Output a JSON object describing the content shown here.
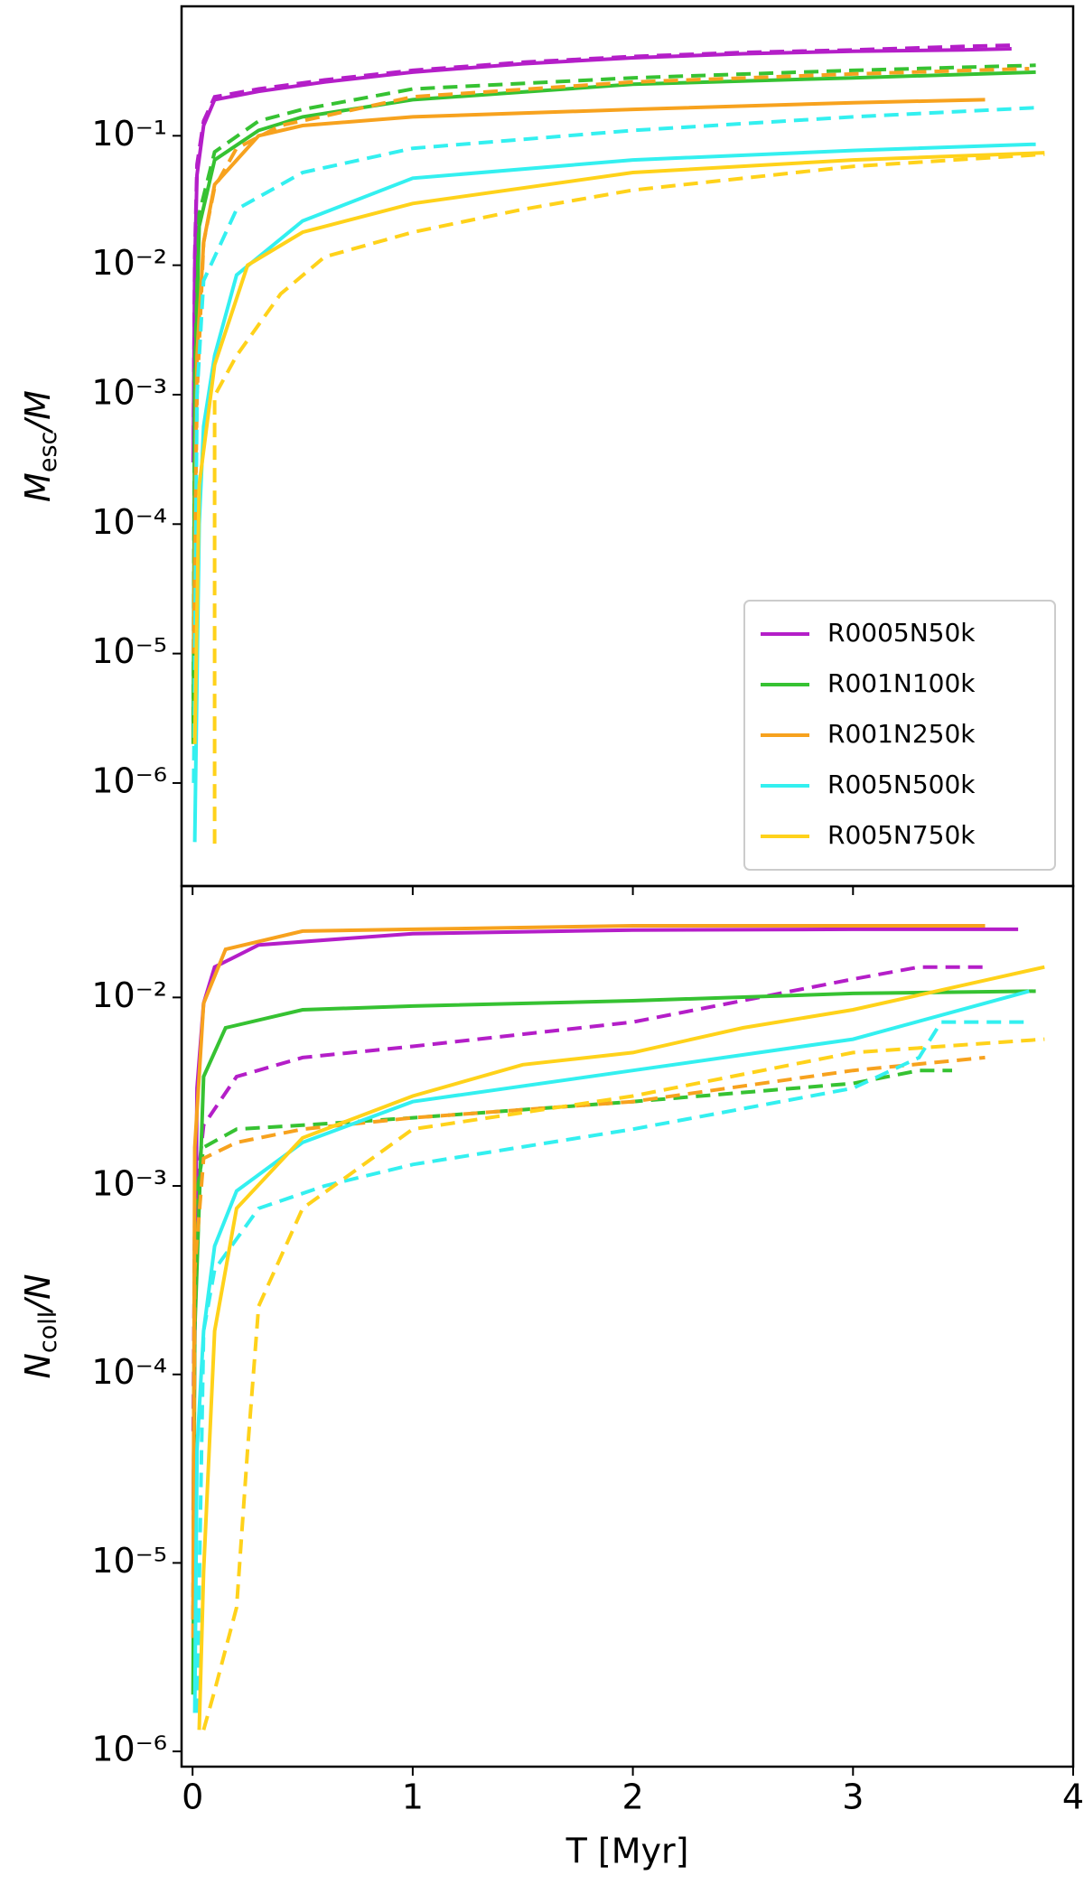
{
  "chart_data": [
    {
      "type": "line",
      "yscale": "log",
      "grid": false,
      "legend": "lower right",
      "ylabel": {
        "symbol": "M",
        "subscript": "esc",
        "suffix": "/M"
      },
      "xlim": [
        -0.05,
        4.0
      ],
      "xticks": [
        0,
        1,
        2,
        3,
        4
      ],
      "ylim": [
        1.6e-07,
        1.0
      ],
      "yticks": [
        {
          "value": 1e-06,
          "label": "10⁻⁶"
        },
        {
          "value": 1e-05,
          "label": "10⁻⁵"
        },
        {
          "value": 0.0001,
          "label": "10⁻⁴"
        },
        {
          "value": 0.001,
          "label": "10⁻³"
        },
        {
          "value": 0.01,
          "label": "10⁻²"
        },
        {
          "value": 0.1,
          "label": "10⁻¹"
        }
      ],
      "series": [
        {
          "name": "R0005N50k",
          "color": "#b41ec8",
          "linestyle": "solid",
          "x": [
            0.003,
            0.01,
            0.02,
            0.05,
            0.1,
            0.3,
            0.6,
            1,
            1.5,
            2,
            2.5,
            3,
            3.5,
            3.72
          ],
          "values": [
            0.0003,
            0.01,
            0.05,
            0.12,
            0.19,
            0.22,
            0.26,
            0.31,
            0.36,
            0.4,
            0.43,
            0.45,
            0.46,
            0.47
          ]
        },
        {
          "color": "#b41ec8",
          "linestyle": "dashed",
          "x": [
            0.003,
            0.01,
            0.02,
            0.05,
            0.1,
            0.3,
            0.6,
            1,
            1.5,
            2,
            2.5,
            3,
            3.5,
            3.72
          ],
          "values": [
            0.0003,
            0.012,
            0.06,
            0.13,
            0.2,
            0.23,
            0.27,
            0.32,
            0.37,
            0.41,
            0.44,
            0.46,
            0.49,
            0.5
          ]
        },
        {
          "name": "R001N100k",
          "color": "#36c232",
          "linestyle": "solid",
          "x": [
            0.003,
            0.01,
            0.03,
            0.1,
            0.3,
            0.5,
            1,
            2,
            3,
            3.83
          ],
          "values": [
            2e-06,
            0.001,
            0.02,
            0.065,
            0.11,
            0.14,
            0.19,
            0.25,
            0.28,
            0.31
          ]
        },
        {
          "color": "#36c232",
          "linestyle": "dashed",
          "x": [
            0.003,
            0.01,
            0.03,
            0.1,
            0.3,
            0.5,
            1,
            2,
            3,
            3.83
          ],
          "values": [
            3e-06,
            0.0015,
            0.025,
            0.075,
            0.13,
            0.16,
            0.23,
            0.28,
            0.32,
            0.35
          ]
        },
        {
          "name": "R001N250k",
          "color": "#f7a21e",
          "linestyle": "solid",
          "x": [
            0.005,
            0.02,
            0.05,
            0.1,
            0.3,
            0.5,
            1,
            2,
            3,
            3.6
          ],
          "values": [
            1e-05,
            0.002,
            0.015,
            0.042,
            0.1,
            0.12,
            0.14,
            0.16,
            0.18,
            0.19
          ]
        },
        {
          "color": "#f7a21e",
          "linestyle": "dashed",
          "x": [
            0.005,
            0.02,
            0.05,
            0.1,
            0.2,
            0.4,
            1,
            2,
            3,
            3.8
          ],
          "values": [
            1e-05,
            0.001,
            0.015,
            0.04,
            0.08,
            0.12,
            0.2,
            0.26,
            0.3,
            0.33
          ]
        },
        {
          "name": "R005N500k",
          "color": "#33f0f0",
          "linestyle": "solid",
          "x": [
            0.01,
            0.03,
            0.05,
            0.1,
            0.2,
            0.5,
            1,
            2,
            3,
            3.83
          ],
          "values": [
            3.5e-07,
            0.0001,
            0.00057,
            0.002,
            0.0084,
            0.022,
            0.047,
            0.065,
            0.077,
            0.086
          ]
        },
        {
          "color": "#33f0f0",
          "linestyle": "dashed",
          "x": [
            0.005,
            0.02,
            0.05,
            0.2,
            0.5,
            1,
            2,
            3,
            3.83
          ],
          "values": [
            1e-06,
            0.001,
            0.0076,
            0.027,
            0.052,
            0.08,
            0.11,
            0.14,
            0.165
          ]
        },
        {
          "name": "R005N750k",
          "color": "#ffd21a",
          "linestyle": "solid",
          "x": [
            0.01,
            0.03,
            0.1,
            0.25,
            0.5,
            1,
            2,
            3,
            3.87
          ],
          "values": [
            2e-06,
            0.0002,
            0.0017,
            0.01,
            0.018,
            0.03,
            0.052,
            0.065,
            0.074
          ]
        },
        {
          "color": "#ffd21a",
          "linestyle": "dashed",
          "x": [
            0.1,
            0.1,
            0.2,
            0.4,
            0.6,
            1,
            1.5,
            2,
            3,
            3.87
          ],
          "values": [
            3.4e-07,
            0.00098,
            0.002,
            0.006,
            0.0116,
            0.018,
            0.027,
            0.038,
            0.058,
            0.072
          ]
        }
      ]
    },
    {
      "type": "line",
      "yscale": "log",
      "grid": false,
      "ylabel": {
        "symbol": "N",
        "subscript": "coll",
        "suffix": "/N"
      },
      "xlabel": "T [Myr]",
      "xlim": [
        -0.05,
        4.0
      ],
      "xticks": [
        0,
        1,
        2,
        3,
        4
      ],
      "ylim": [
        8.3e-07,
        0.039
      ],
      "yticks": [
        {
          "value": 1e-06,
          "label": "10⁻⁶"
        },
        {
          "value": 1e-05,
          "label": "10⁻⁵"
        },
        {
          "value": 0.0001,
          "label": "10⁻⁴"
        },
        {
          "value": 0.001,
          "label": "10⁻³"
        },
        {
          "value": 0.01,
          "label": "10⁻²"
        }
      ],
      "series": [
        {
          "color": "#b41ec8",
          "linestyle": "solid",
          "x": [
            0.003,
            0.02,
            0.05,
            0.1,
            0.3,
            1,
            2,
            3,
            3.75
          ],
          "values": [
            1.9e-05,
            0.0033,
            0.0093,
            0.0145,
            0.019,
            0.0218,
            0.0228,
            0.023,
            0.023
          ]
        },
        {
          "color": "#b41ec8",
          "linestyle": "dashed",
          "x": [
            0.003,
            0.01,
            0.05,
            0.2,
            0.5,
            1,
            2,
            3,
            3.3,
            3.6
          ],
          "values": [
            5e-05,
            0.00076,
            0.0021,
            0.0038,
            0.0048,
            0.0055,
            0.0074,
            0.0125,
            0.0145,
            0.0145
          ]
        },
        {
          "color": "#36c232",
          "linestyle": "solid",
          "x": [
            0.002,
            0.01,
            0.05,
            0.15,
            0.5,
            1,
            2,
            3,
            3.83
          ],
          "values": [
            2e-06,
            0.00017,
            0.0038,
            0.0069,
            0.0086,
            0.009,
            0.0096,
            0.0105,
            0.0108
          ]
        },
        {
          "color": "#36c232",
          "linestyle": "dashed",
          "x": [
            0.002,
            0.01,
            0.05,
            0.2,
            0.5,
            1,
            2,
            3,
            3.3,
            3.45
          ],
          "values": [
            5e-06,
            0.00076,
            0.0016,
            0.002,
            0.0021,
            0.0023,
            0.0028,
            0.0035,
            0.0041,
            0.0041
          ]
        },
        {
          "color": "#f7a21e",
          "linestyle": "solid",
          "x": [
            0.002,
            0.01,
            0.05,
            0.15,
            0.5,
            1,
            2,
            3,
            3.6
          ],
          "values": [
            5e-06,
            0.0016,
            0.0093,
            0.018,
            0.0225,
            0.023,
            0.024,
            0.024,
            0.024
          ]
        },
        {
          "color": "#f7a21e",
          "linestyle": "dashed",
          "x": [
            0.002,
            0.01,
            0.05,
            0.2,
            0.5,
            1,
            2,
            3,
            3.6
          ],
          "values": [
            4e-06,
            0.00036,
            0.0014,
            0.0017,
            0.002,
            0.0023,
            0.0028,
            0.0041,
            0.0048
          ]
        },
        {
          "color": "#33f0f0",
          "linestyle": "solid",
          "x": [
            0.01,
            0.02,
            0.05,
            0.1,
            0.2,
            0.5,
            1,
            2,
            3,
            3.8
          ],
          "values": [
            1.6e-06,
            4e-05,
            0.00017,
            0.00048,
            0.00094,
            0.0017,
            0.0028,
            0.0041,
            0.006,
            0.0108
          ]
        },
        {
          "color": "#33f0f0",
          "linestyle": "dashed",
          "x": [
            0.02,
            0.05,
            0.1,
            0.3,
            0.6,
            1,
            2,
            3,
            3.3,
            3.4,
            3.8
          ],
          "values": [
            1.6e-06,
            0.00017,
            0.00036,
            0.00076,
            0.001,
            0.0013,
            0.002,
            0.0033,
            0.0048,
            0.0074,
            0.0074
          ]
        },
        {
          "color": "#ffd21a",
          "linestyle": "solid",
          "x": [
            0.03,
            0.05,
            0.1,
            0.2,
            0.5,
            1,
            1.5,
            2,
            2.5,
            3,
            3.87
          ],
          "values": [
            1.3e-06,
            9e-06,
            0.00017,
            0.00076,
            0.0018,
            0.003,
            0.0044,
            0.0051,
            0.0069,
            0.0086,
            0.0145
          ]
        },
        {
          "color": "#ffd21a",
          "linestyle": "dashed",
          "x": [
            0.05,
            0.1,
            0.2,
            0.25,
            0.3,
            0.5,
            1,
            2,
            3,
            3.87
          ],
          "values": [
            1.3e-06,
            2.1e-06,
            5.8e-06,
            4e-05,
            0.00023,
            0.00076,
            0.002,
            0.003,
            0.0051,
            0.006
          ]
        }
      ]
    }
  ]
}
